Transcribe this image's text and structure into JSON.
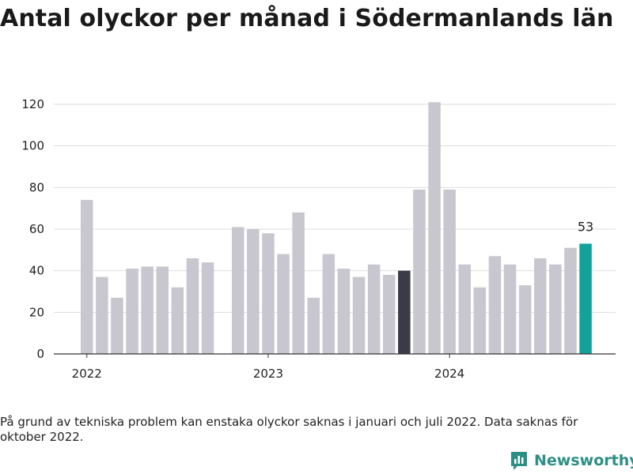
{
  "title": "Antal olyckor per månad i Södermanlands län",
  "footnote": "På grund av tekniska problem kan enstaka olyckor saknas i januari och juli 2022. Data saknas för oktober 2022.",
  "brand": {
    "name": "Newsworthy",
    "icon": "bar-chart-logo-icon"
  },
  "colors": {
    "bar": "#c8c7d0",
    "highlight": "#3b3b48",
    "last": "#12a29a",
    "grid": "#dddddd",
    "axis": "#333333",
    "text": "#222222",
    "brand": "#2c8f85"
  },
  "chart_data": {
    "type": "bar",
    "title": "",
    "xlabel": "",
    "ylabel": "",
    "ylim": [
      0,
      125
    ],
    "yticks": [
      0,
      20,
      40,
      60,
      80,
      100,
      120
    ],
    "grid": true,
    "x_tick_labels": [
      {
        "label": "2022",
        "index": 0
      },
      {
        "label": "2023",
        "index": 12
      },
      {
        "label": "2024",
        "index": 24
      }
    ],
    "categories": [
      "2022-01",
      "2022-02",
      "2022-03",
      "2022-04",
      "2022-05",
      "2022-06",
      "2022-07",
      "2022-08",
      "2022-09",
      "2022-10",
      "2022-11",
      "2022-12",
      "2023-01",
      "2023-02",
      "2023-03",
      "2023-04",
      "2023-05",
      "2023-06",
      "2023-07",
      "2023-08",
      "2023-09",
      "2023-10",
      "2023-11",
      "2023-12",
      "2024-01",
      "2024-02",
      "2024-03",
      "2024-04",
      "2024-05",
      "2024-06",
      "2024-07",
      "2024-08",
      "2024-09",
      "2024-10"
    ],
    "values": [
      74,
      37,
      27,
      41,
      42,
      42,
      32,
      46,
      44,
      null,
      61,
      60,
      58,
      48,
      68,
      27,
      48,
      41,
      37,
      43,
      38,
      40,
      79,
      121,
      79,
      43,
      32,
      47,
      43,
      33,
      46,
      43,
      51,
      53
    ],
    "highlight_index": 21,
    "last_index": 33,
    "value_label": "53"
  }
}
